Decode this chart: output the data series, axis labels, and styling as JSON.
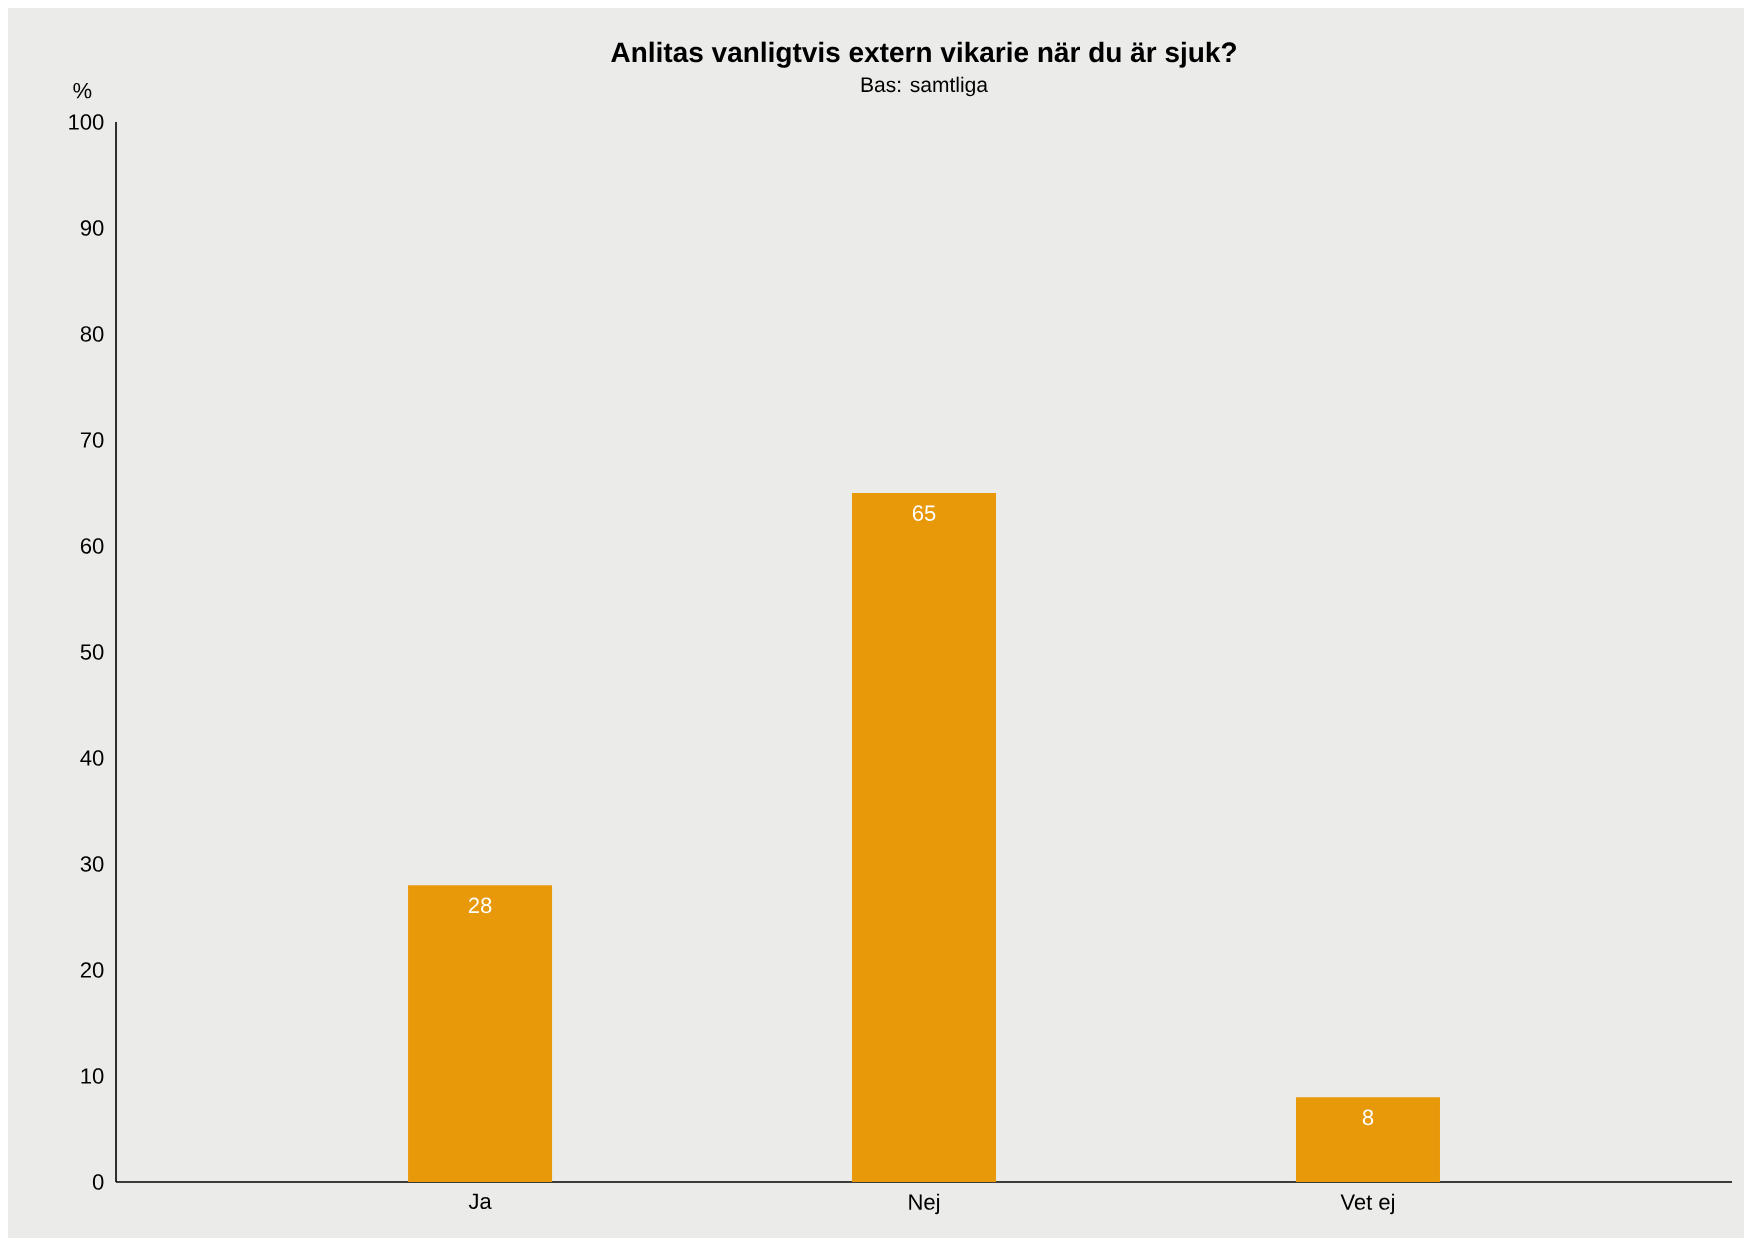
{
  "chart_data": {
    "type": "bar",
    "title": "Anlitas vanligtvis extern vikarie när du är sjuk?",
    "subtitle": "Bas: samtliga",
    "ylabel": "%",
    "categories": [
      "Ja",
      "Nej",
      "Vet ej"
    ],
    "values": [
      28,
      65,
      8
    ],
    "color": "#e8990a",
    "ylim": [
      0,
      100
    ],
    "yticks": [
      0,
      10,
      20,
      30,
      40,
      50,
      60,
      70,
      80,
      90,
      100
    ],
    "data_labels": true
  }
}
